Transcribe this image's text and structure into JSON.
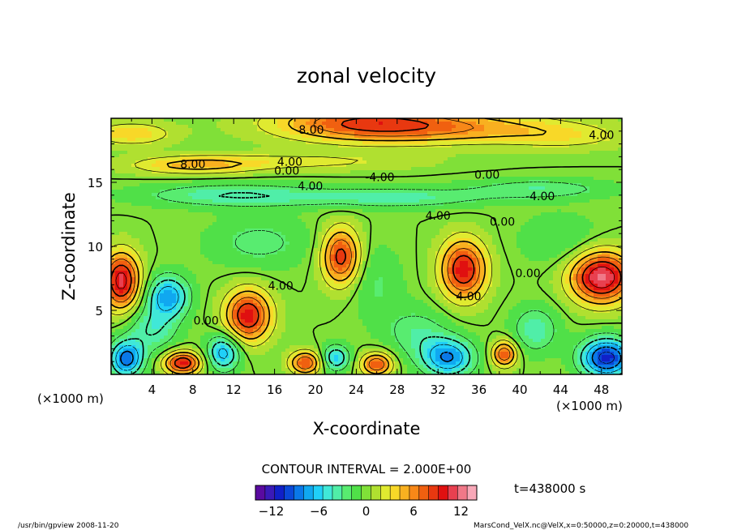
{
  "chart_data": {
    "type": "heatmap",
    "title": "zonal velocity",
    "xlabel": "X-coordinate",
    "ylabel": "Z-coordinate",
    "x_unit_left": "(×1000 m)",
    "x_unit_right": "(×1000 m)",
    "xlim": [
      0,
      50
    ],
    "ylim": [
      0,
      20
    ],
    "x_ticks": [
      4,
      8,
      12,
      16,
      20,
      24,
      28,
      32,
      36,
      40,
      44,
      48
    ],
    "y_ticks": [
      5,
      10,
      15
    ],
    "contour_interval_text": "CONTOUR INTERVAL = 2.000E+00",
    "contour_labels": [
      {
        "text": "8.00",
        "x": 19.6,
        "z": 18.8
      },
      {
        "text": "4.00",
        "x": 48.0,
        "z": 18.4
      },
      {
        "text": "8.00",
        "x": 8.0,
        "z": 16.1
      },
      {
        "text": "4.00",
        "x": 17.5,
        "z": 16.3
      },
      {
        "text": "0.00",
        "x": 17.2,
        "z": 15.6
      },
      {
        "text": "-4.00",
        "x": 26.3,
        "z": 15.1
      },
      {
        "text": "4.00",
        "x": 19.5,
        "z": 14.4
      },
      {
        "text": "0.00",
        "x": 36.8,
        "z": 15.3
      },
      {
        "text": "-4.00",
        "x": 42.0,
        "z": 13.6
      },
      {
        "text": "4.00",
        "x": 32.0,
        "z": 12.1
      },
      {
        "text": "0.00",
        "x": 38.3,
        "z": 11.6
      },
      {
        "text": "0.00",
        "x": 40.8,
        "z": 7.6
      },
      {
        "text": "4.00",
        "x": 16.6,
        "z": 6.6
      },
      {
        "text": "4.00",
        "x": 35.0,
        "z": 5.8
      },
      {
        "text": "0.00",
        "x": 9.3,
        "z": 3.9
      }
    ],
    "blobs": [
      {
        "x": 25.0,
        "z": 19.6,
        "sx": 9.0,
        "sz": 1.4,
        "amp": 8.0
      },
      {
        "x": 36.0,
        "z": 19.2,
        "sx": 10.0,
        "sz": 1.2,
        "amp": 4.0
      },
      {
        "x": 2.0,
        "z": 18.8,
        "sx": 4.0,
        "sz": 0.9,
        "amp": 4.0
      },
      {
        "x": 45.0,
        "z": 18.5,
        "sx": 6.0,
        "sz": 1.0,
        "amp": 2.0
      },
      {
        "x": 8.0,
        "z": 16.3,
        "sx": 6.0,
        "sz": 0.7,
        "amp": 4.0
      },
      {
        "x": 18.0,
        "z": 16.6,
        "sx": 12.0,
        "sz": 0.7,
        "amp": 2.5
      },
      {
        "x": 12.0,
        "z": 14.0,
        "sx": 9.0,
        "sz": 0.9,
        "amp": -4.0
      },
      {
        "x": 28.0,
        "z": 13.8,
        "sx": 9.0,
        "sz": 0.8,
        "amp": -3.5
      },
      {
        "x": 42.0,
        "z": 14.5,
        "sx": 7.0,
        "sz": 0.8,
        "amp": -3.0
      },
      {
        "x": 1.0,
        "z": 7.3,
        "sx": 1.8,
        "sz": 2.2,
        "amp": 11.0
      },
      {
        "x": 5.6,
        "z": 6.1,
        "sx": 2.0,
        "sz": 1.6,
        "amp": -7.5
      },
      {
        "x": 13.4,
        "z": 4.6,
        "sx": 2.2,
        "sz": 2.0,
        "amp": 10.0
      },
      {
        "x": 22.5,
        "z": 9.2,
        "sx": 1.8,
        "sz": 2.2,
        "amp": 9.0
      },
      {
        "x": 34.5,
        "z": 8.2,
        "sx": 2.2,
        "sz": 2.3,
        "amp": 10.0
      },
      {
        "x": 48.0,
        "z": 7.6,
        "sx": 3.0,
        "sz": 2.0,
        "amp": 12.0
      },
      {
        "x": 14.5,
        "z": 10.3,
        "sx": 5.0,
        "sz": 2.0,
        "amp": -2.5
      },
      {
        "x": 7.0,
        "z": 0.9,
        "sx": 1.8,
        "sz": 0.9,
        "amp": 10.0
      },
      {
        "x": 19.0,
        "z": 0.9,
        "sx": 1.5,
        "sz": 0.9,
        "amp": 8.0
      },
      {
        "x": 26.0,
        "z": 0.8,
        "sx": 1.5,
        "sz": 0.9,
        "amp": 8.0
      },
      {
        "x": 38.5,
        "z": 1.6,
        "sx": 1.2,
        "sz": 1.0,
        "amp": 8.0
      },
      {
        "x": 33.0,
        "z": 1.3,
        "sx": 2.5,
        "sz": 1.5,
        "amp": -8.0
      },
      {
        "x": 48.5,
        "z": 1.3,
        "sx": 2.5,
        "sz": 1.5,
        "amp": -11.0
      },
      {
        "x": 1.5,
        "z": 1.2,
        "sx": 1.6,
        "sz": 1.4,
        "amp": -9.0
      },
      {
        "x": 11.0,
        "z": 1.7,
        "sx": 1.6,
        "sz": 1.4,
        "amp": -7.0
      },
      {
        "x": 22.0,
        "z": 1.3,
        "sx": 1.3,
        "sz": 1.0,
        "amp": -6.0
      },
      {
        "x": 30.0,
        "z": 3.2,
        "sx": 3.0,
        "sz": 2.0,
        "amp": -3.0
      },
      {
        "x": 41.5,
        "z": 3.5,
        "sx": 2.2,
        "sz": 1.8,
        "amp": -4.0
      },
      {
        "x": 4.0,
        "z": 3.5,
        "sx": 2.5,
        "sz": 1.8,
        "amp": -4.0
      },
      {
        "x": 26.0,
        "z": 7.0,
        "sx": 2.5,
        "sz": 3.0,
        "amp": -2.0
      },
      {
        "x": 44.0,
        "z": 10.5,
        "sx": 4.0,
        "sz": 2.0,
        "amp": -2.0
      }
    ],
    "colorbar": {
      "min": -14,
      "max": 14,
      "ticks": [
        -12,
        -6,
        0,
        6,
        12
      ],
      "tick_labels": [
        "−12",
        "−6",
        "0",
        "6",
        "12"
      ],
      "colors": [
        "#5a0aa0",
        "#3a1ab8",
        "#1020c8",
        "#0a48d8",
        "#0a78e8",
        "#10a8f0",
        "#20d0f8",
        "#40e8d8",
        "#50eea8",
        "#58ec70",
        "#50e048",
        "#80e038",
        "#b0e030",
        "#e0ea30",
        "#f8d828",
        "#f8b020",
        "#f88818",
        "#f06010",
        "#e83810",
        "#e01010",
        "#e84050",
        "#f07888",
        "#f8a8b8"
      ]
    }
  },
  "footer": {
    "time": "t=438000 s",
    "program": "/usr/bin/gpview  2008-11-20",
    "source": "MarsCond_VelX.nc@VelX,x=0:50000,z=0:20000,t=438000"
  }
}
